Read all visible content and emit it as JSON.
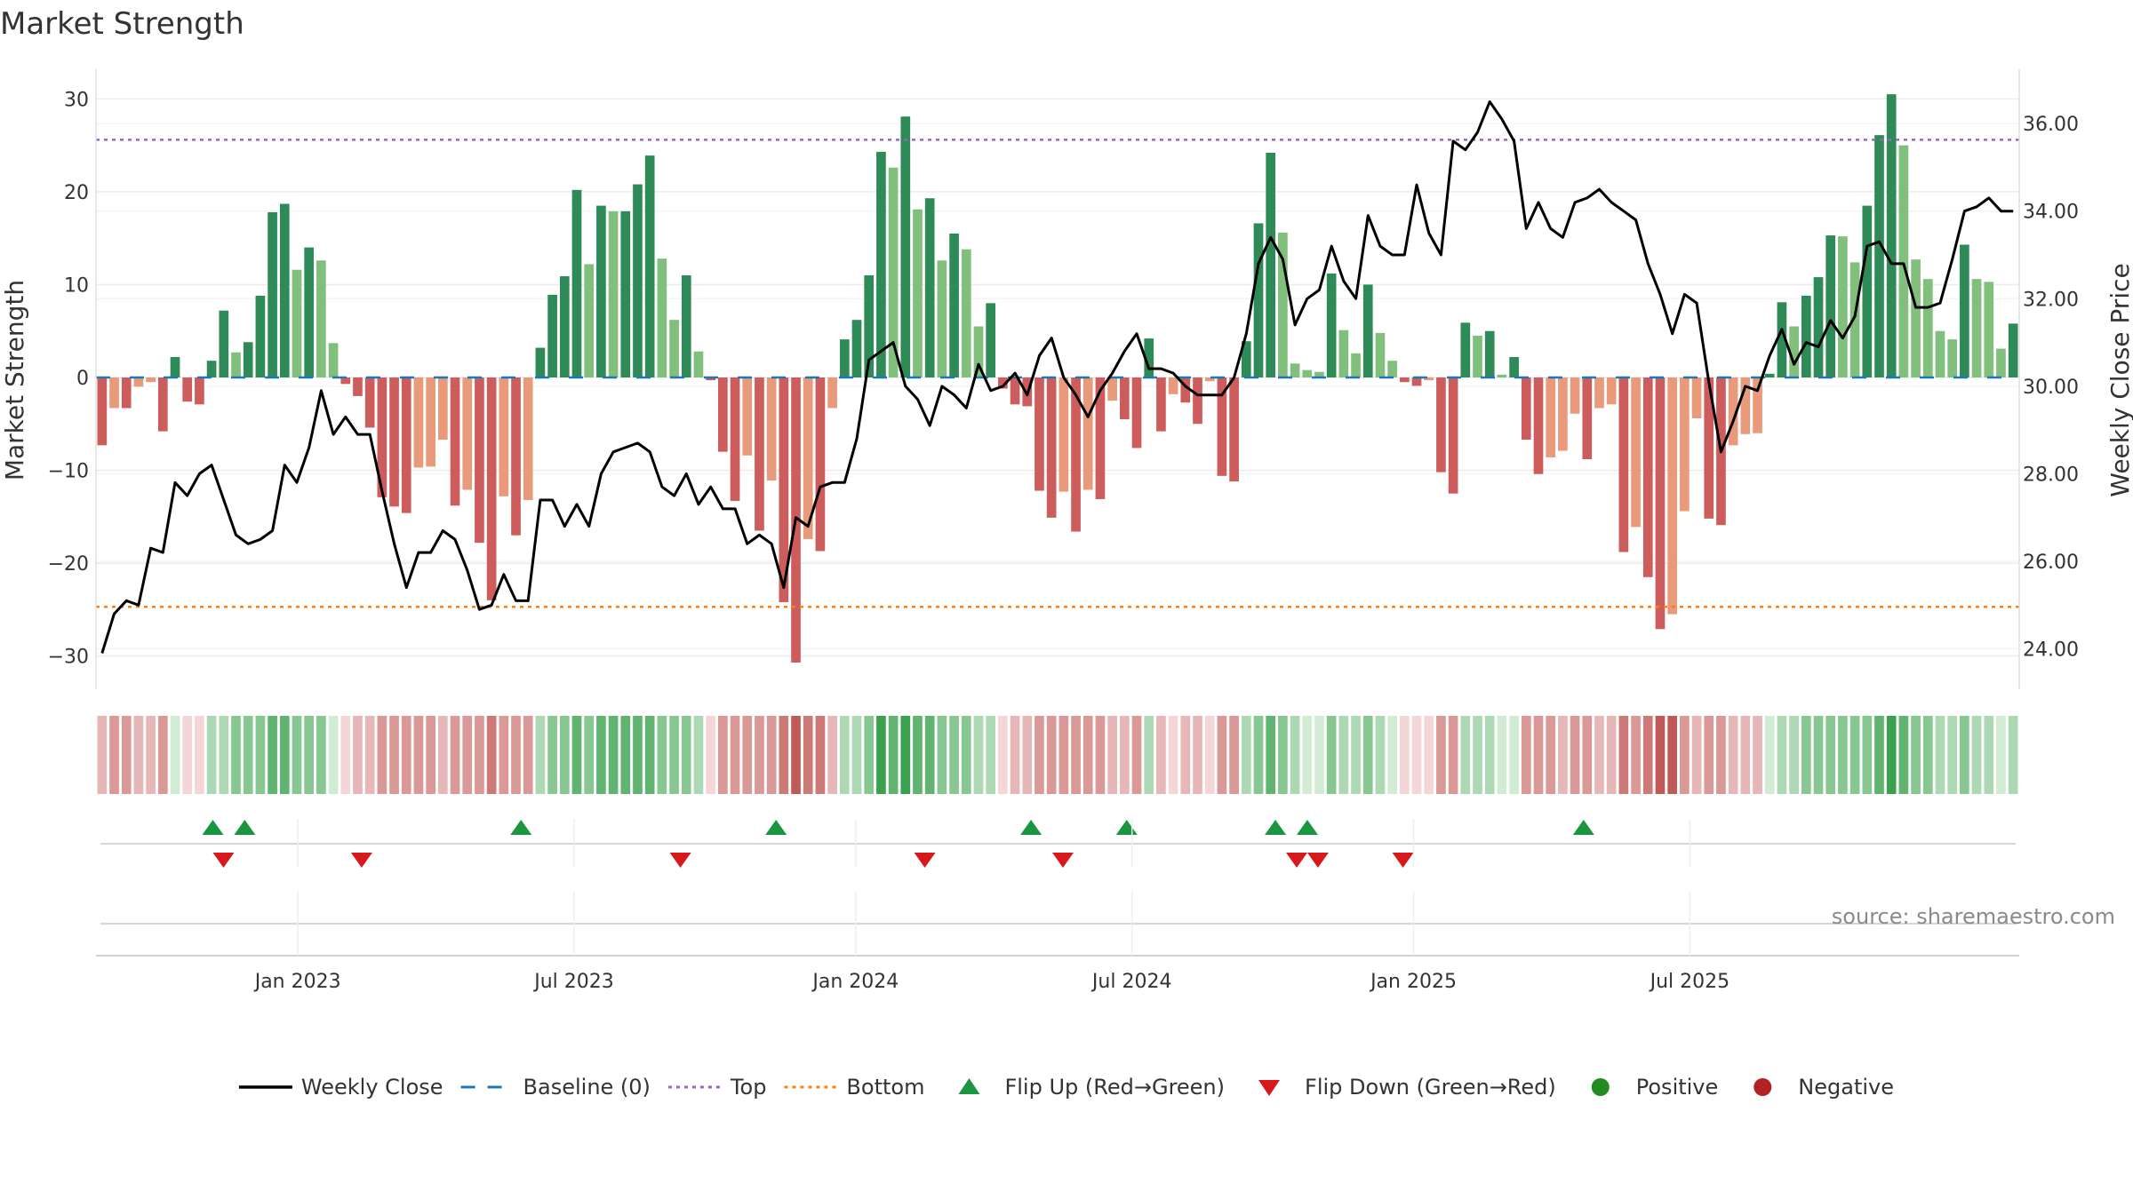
{
  "chart_data": {
    "type": "bar",
    "title": "Market Strength",
    "ylabel": "Market Strength",
    "y2label": "Weekly Close Price",
    "ylim": [
      -33,
      33
    ],
    "y2lim": [
      23.2,
      37.2
    ],
    "yticks": [
      30,
      20,
      10,
      0,
      -10,
      -20,
      -30
    ],
    "ytick_labels": [
      "30",
      "20",
      "10",
      "0",
      "−10",
      "−20",
      "−30"
    ],
    "y2ticks": [
      36,
      34,
      32,
      30,
      28,
      26,
      24
    ],
    "y2tick_labels": [
      "36.00",
      "34.00",
      "32.00",
      "30.00",
      "28.00",
      "26.00",
      "24.00"
    ],
    "xrange_weeks": [
      -19,
      162
    ],
    "xticks": [
      {
        "label": "Jan 2023",
        "week": 0
      },
      {
        "label": "Jul 2023",
        "week": 26
      },
      {
        "label": "Jan 2024",
        "week": 52.5
      },
      {
        "label": "Jul 2024",
        "week": 78.5
      },
      {
        "label": "Jan 2025",
        "week": 105
      },
      {
        "label": "Jul 2025",
        "week": 131
      }
    ],
    "top_line": 25.6,
    "bottom_line": -24.7,
    "strength": [
      -7.3,
      -3.3,
      -3.3,
      -1.0,
      -0.5,
      -5.8,
      2.2,
      -2.6,
      -2.9,
      1.8,
      7.2,
      2.7,
      3.8,
      8.8,
      17.8,
      18.7,
      11.6,
      14.0,
      12.6,
      3.7,
      -0.7,
      -2.0,
      -5.4,
      -12.9,
      -13.9,
      -14.6,
      -9.7,
      -9.6,
      -6.7,
      -13.8,
      -12.1,
      -17.8,
      -24.0,
      -12.8,
      -17.0,
      -13.2,
      3.2,
      8.9,
      10.9,
      20.2,
      12.2,
      18.5,
      17.9,
      17.9,
      20.8,
      23.9,
      12.8,
      6.2,
      11.0,
      2.8,
      -0.3,
      -8.0,
      -13.3,
      -8.4,
      -16.5,
      -11.1,
      -24.2,
      -30.7,
      -17.4,
      -18.7,
      -3.3,
      4.1,
      6.2,
      11.0,
      24.3,
      22.6,
      28.1,
      18.1,
      19.3,
      12.6,
      15.5,
      13.8,
      5.5,
      8.0,
      -1.2,
      -2.9,
      -3.1,
      -12.2,
      -15.1,
      -12.3,
      -16.6,
      -12.1,
      -13.1,
      -2.5,
      -4.5,
      -7.6,
      4.2,
      -5.8,
      -1.8,
      -2.7,
      -5.0,
      -0.4,
      -10.6,
      -11.2,
      3.9,
      16.6,
      24.2,
      15.6,
      1.5,
      0.8,
      0.6,
      11.2,
      5.1,
      2.6,
      10.0,
      4.8,
      1.8,
      -0.5,
      -0.9,
      -0.3,
      -10.2,
      -12.5,
      5.9,
      4.5,
      5.0,
      0.3,
      2.2,
      -6.7,
      -10.4,
      -8.6,
      -7.9,
      -3.9,
      -8.8,
      -3.3,
      -2.9,
      -18.8,
      -16.1,
      -21.5,
      -27.1,
      -25.5,
      -14.4,
      -4.4,
      -15.2,
      -15.9,
      -7.3,
      -6.1,
      -6.0,
      0.4,
      8.1,
      5.5,
      8.8,
      10.8,
      15.3,
      15.2,
      12.4,
      18.5,
      26.1,
      30.5,
      25.0,
      12.7,
      10.6,
      5.0,
      4.1,
      14.3,
      10.6,
      10.3,
      3.1,
      5.8
    ],
    "weekly_close": [
      23.9,
      24.8,
      25.1,
      25.0,
      26.3,
      26.2,
      27.8,
      27.5,
      28.0,
      28.2,
      27.4,
      26.6,
      26.4,
      26.5,
      26.7,
      28.2,
      27.8,
      28.6,
      29.9,
      28.9,
      29.3,
      28.9,
      28.9,
      27.6,
      26.4,
      25.4,
      26.2,
      26.2,
      26.7,
      26.5,
      25.8,
      24.9,
      25.0,
      25.7,
      25.1,
      25.1,
      27.4,
      27.4,
      26.8,
      27.3,
      26.8,
      28.0,
      28.5,
      28.6,
      28.7,
      28.5,
      27.7,
      27.5,
      28.0,
      27.3,
      27.7,
      27.2,
      27.2,
      26.4,
      26.6,
      26.4,
      25.4,
      27.0,
      26.8,
      27.7,
      27.8,
      27.8,
      28.8,
      30.6,
      30.8,
      31.0,
      30.0,
      29.7,
      29.1,
      30.0,
      29.8,
      29.5,
      30.5,
      29.9,
      30.0,
      30.3,
      29.8,
      30.7,
      31.1,
      30.2,
      29.8,
      29.3,
      29.9,
      30.3,
      30.8,
      31.2,
      30.4,
      30.4,
      30.3,
      30.0,
      29.8,
      29.8,
      29.8,
      30.2,
      31.2,
      32.8,
      33.4,
      32.9,
      31.4,
      32.0,
      32.2,
      33.2,
      32.4,
      32.0,
      33.9,
      33.2,
      33.0,
      33.0,
      34.6,
      33.5,
      33.0,
      35.6,
      35.4,
      35.8,
      36.5,
      36.1,
      35.6,
      33.6,
      34.2,
      33.6,
      33.4,
      34.2,
      34.3,
      34.5,
      34.2,
      34.0,
      33.8,
      32.8,
      32.1,
      31.2,
      32.1,
      31.9,
      30.1,
      28.5,
      29.2,
      30.0,
      29.9,
      30.7,
      31.3,
      30.5,
      31.0,
      30.9,
      31.5,
      31.1,
      31.6,
      33.2,
      33.3,
      32.8,
      32.8,
      31.8,
      31.8,
      31.9,
      32.9,
      34.0,
      34.1,
      34.3,
      34.0,
      34.0
    ],
    "band_intensity": [
      2,
      3,
      3,
      2,
      2,
      3,
      1,
      1,
      1,
      2,
      2,
      3,
      3,
      3,
      4,
      4,
      3,
      3,
      3,
      1,
      1,
      2,
      2,
      3,
      3,
      3,
      3,
      3,
      2,
      3,
      3,
      3,
      4,
      3,
      3,
      3,
      2,
      3,
      3,
      4,
      3,
      4,
      4,
      4,
      4,
      4,
      3,
      3,
      3,
      2,
      1,
      3,
      3,
      3,
      3,
      3,
      4,
      5,
      4,
      4,
      2,
      2,
      2,
      3,
      5,
      4,
      5,
      4,
      4,
      3,
      3,
      3,
      2,
      2,
      1,
      2,
      2,
      3,
      3,
      3,
      3,
      3,
      3,
      2,
      2,
      3,
      2,
      2,
      1,
      2,
      2,
      1,
      3,
      3,
      2,
      3,
      4,
      3,
      2,
      1,
      1,
      3,
      2,
      2,
      3,
      2,
      1,
      1,
      1,
      1,
      3,
      3,
      2,
      2,
      2,
      1,
      1,
      3,
      3,
      3,
      2,
      3,
      3,
      2,
      2,
      4,
      3,
      4,
      5,
      5,
      3,
      2,
      3,
      3,
      2,
      2,
      2,
      1,
      2,
      2,
      3,
      3,
      3,
      3,
      3,
      3,
      4,
      5,
      4,
      3,
      3,
      2,
      2,
      3,
      2,
      2,
      1,
      2
    ],
    "flip_up_weeks": [
      -8,
      -5,
      21,
      45,
      69,
      78,
      92,
      95,
      121
    ],
    "flip_down_weeks": [
      -7,
      6,
      36,
      59,
      72,
      94,
      96,
      104
    ],
    "colors": {
      "strong_green": "#2e8b57",
      "light_green": "#81bf7d",
      "strong_red": "#cd5c5c",
      "light_red": "#e89a7b",
      "weekly_close": "#000000",
      "baseline": "#1f77b4",
      "top": "#9467bd",
      "bottom": "#ff7f0e",
      "flip_up": "#1a9641",
      "flip_down": "#d7191c",
      "positive": "#228b22",
      "negative": "#b22222",
      "band_green_dark": "#3aa14f",
      "band_green_light": "#d2ecd4",
      "band_red_dark": "#c05a58",
      "band_red_light": "#f3d6d5"
    },
    "source": "source: sharemaestro.com",
    "legend": [
      {
        "label": "Weekly Close",
        "kind": "line-solid",
        "color": "#000000"
      },
      {
        "label": "Baseline (0)",
        "kind": "line-dash",
        "color": "#1f77b4"
      },
      {
        "label": "Top",
        "kind": "line-dot",
        "color": "#9467bd"
      },
      {
        "label": "Bottom",
        "kind": "line-dot",
        "color": "#ff7f0e"
      },
      {
        "label": "Flip Up (Red→Green)",
        "kind": "tri-up",
        "color": "#1a9641"
      },
      {
        "label": "Flip Down (Green→Red)",
        "kind": "tri-down",
        "color": "#d7191c"
      },
      {
        "label": "Positive",
        "kind": "dot",
        "color": "#228b22"
      },
      {
        "label": "Negative",
        "kind": "dot",
        "color": "#b22222"
      }
    ]
  }
}
